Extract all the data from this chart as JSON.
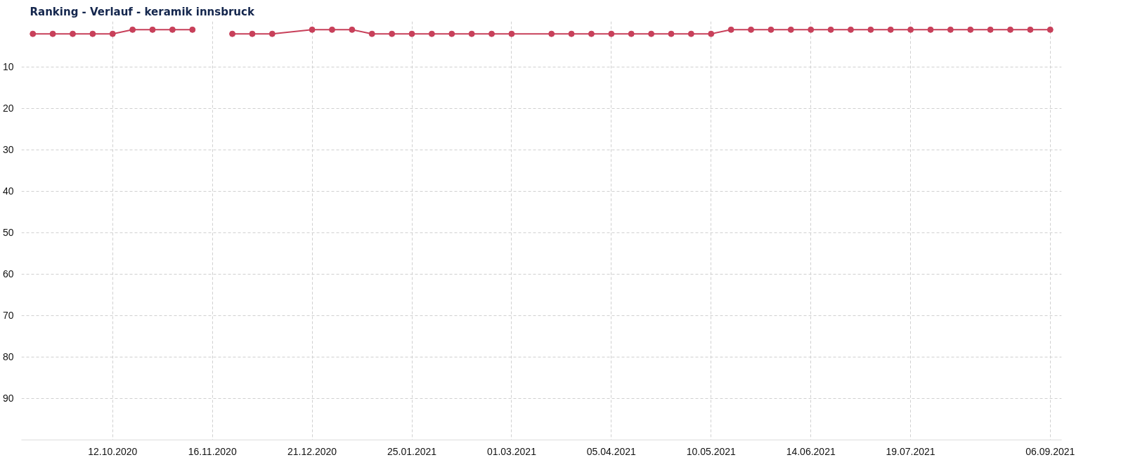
{
  "chart_data": {
    "type": "line",
    "title": "Ranking - Verlauf - keramik innsbruck",
    "x": [
      "2020-09-14",
      "2020-09-21",
      "2020-09-28",
      "2020-10-05",
      "2020-10-12",
      "2020-10-19",
      "2020-10-26",
      "2020-11-02",
      "2020-11-09",
      "2020-11-16",
      "2020-11-23",
      "2020-11-30",
      "2020-12-07",
      "2020-12-21",
      "2020-12-28",
      "2021-01-04",
      "2021-01-11",
      "2021-01-18",
      "2021-01-25",
      "2021-02-01",
      "2021-02-08",
      "2021-02-15",
      "2021-02-22",
      "2021-03-01",
      "2021-03-15",
      "2021-03-22",
      "2021-03-29",
      "2021-04-05",
      "2021-04-12",
      "2021-04-19",
      "2021-04-26",
      "2021-05-03",
      "2021-05-10",
      "2021-05-17",
      "2021-05-24",
      "2021-05-31",
      "2021-06-07",
      "2021-06-14",
      "2021-06-21",
      "2021-06-28",
      "2021-07-05",
      "2021-07-12",
      "2021-07-19",
      "2021-07-26",
      "2021-08-02",
      "2021-08-09",
      "2021-08-16",
      "2021-08-23",
      "2021-08-30",
      "2021-09-06"
    ],
    "series": [
      {
        "color": "#c8405a",
        "values": [
          2,
          2,
          2,
          2,
          2,
          1,
          1,
          1,
          1,
          null,
          2,
          2,
          2,
          1,
          1,
          1,
          2,
          2,
          2,
          2,
          2,
          2,
          2,
          2,
          2,
          2,
          2,
          2,
          2,
          2,
          2,
          2,
          2,
          1,
          1,
          1,
          1,
          1,
          1,
          1,
          1,
          1,
          1,
          1,
          1,
          1,
          1,
          1,
          1,
          1
        ]
      }
    ],
    "xlim": [
      "2020-09-10",
      "2021-09-10"
    ],
    "xticks": [
      {
        "value": "2020-10-12",
        "label": "12.10.2020"
      },
      {
        "value": "2020-11-16",
        "label": "16.11.2020"
      },
      {
        "value": "2020-12-21",
        "label": "21.12.2020"
      },
      {
        "value": "2021-01-25",
        "label": "25.01.2021"
      },
      {
        "value": "2021-03-01",
        "label": "01.03.2021"
      },
      {
        "value": "2021-04-05",
        "label": "05.04.2021"
      },
      {
        "value": "2021-05-10",
        "label": "10.05.2021"
      },
      {
        "value": "2021-06-14",
        "label": "14.06.2021"
      },
      {
        "value": "2021-07-19",
        "label": "19.07.2021"
      },
      {
        "value": "2021-09-06",
        "label": "06.09.2021"
      }
    ],
    "ylim": [
      100,
      -1
    ],
    "yticks": [
      10,
      20,
      30,
      40,
      50,
      60,
      70,
      80,
      90
    ],
    "grid": true,
    "marker": "circle",
    "line_style": "solid"
  }
}
